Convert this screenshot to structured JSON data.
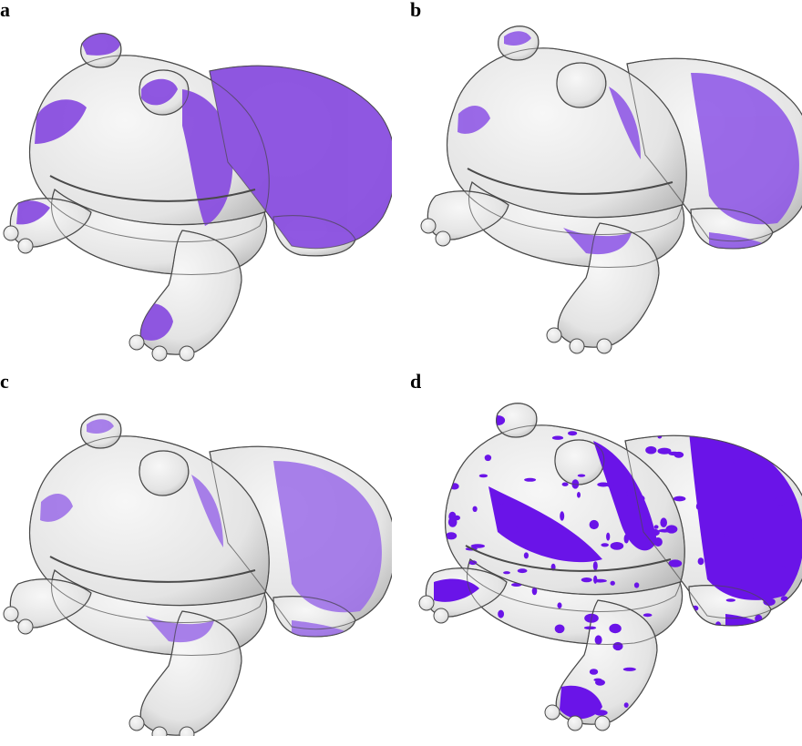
{
  "panels": [
    {
      "label": "a",
      "overlay_color": "#8a4fe0",
      "overlay_opacity": 0.95,
      "coverage": "high"
    },
    {
      "label": "b",
      "overlay_color": "#8b52e6",
      "overlay_opacity": 0.85,
      "coverage": "medium"
    },
    {
      "label": "c",
      "overlay_color": "#9a6be8",
      "overlay_opacity": 0.85,
      "coverage": "medium"
    },
    {
      "label": "d",
      "overlay_color": "#6a14e8",
      "overlay_opacity": 1.0,
      "coverage": "high-speckled"
    }
  ],
  "colors": {
    "surface_white": "#e4e4e4",
    "surface_shade": "#b9b9b9",
    "outline": "#4a4a4a"
  }
}
